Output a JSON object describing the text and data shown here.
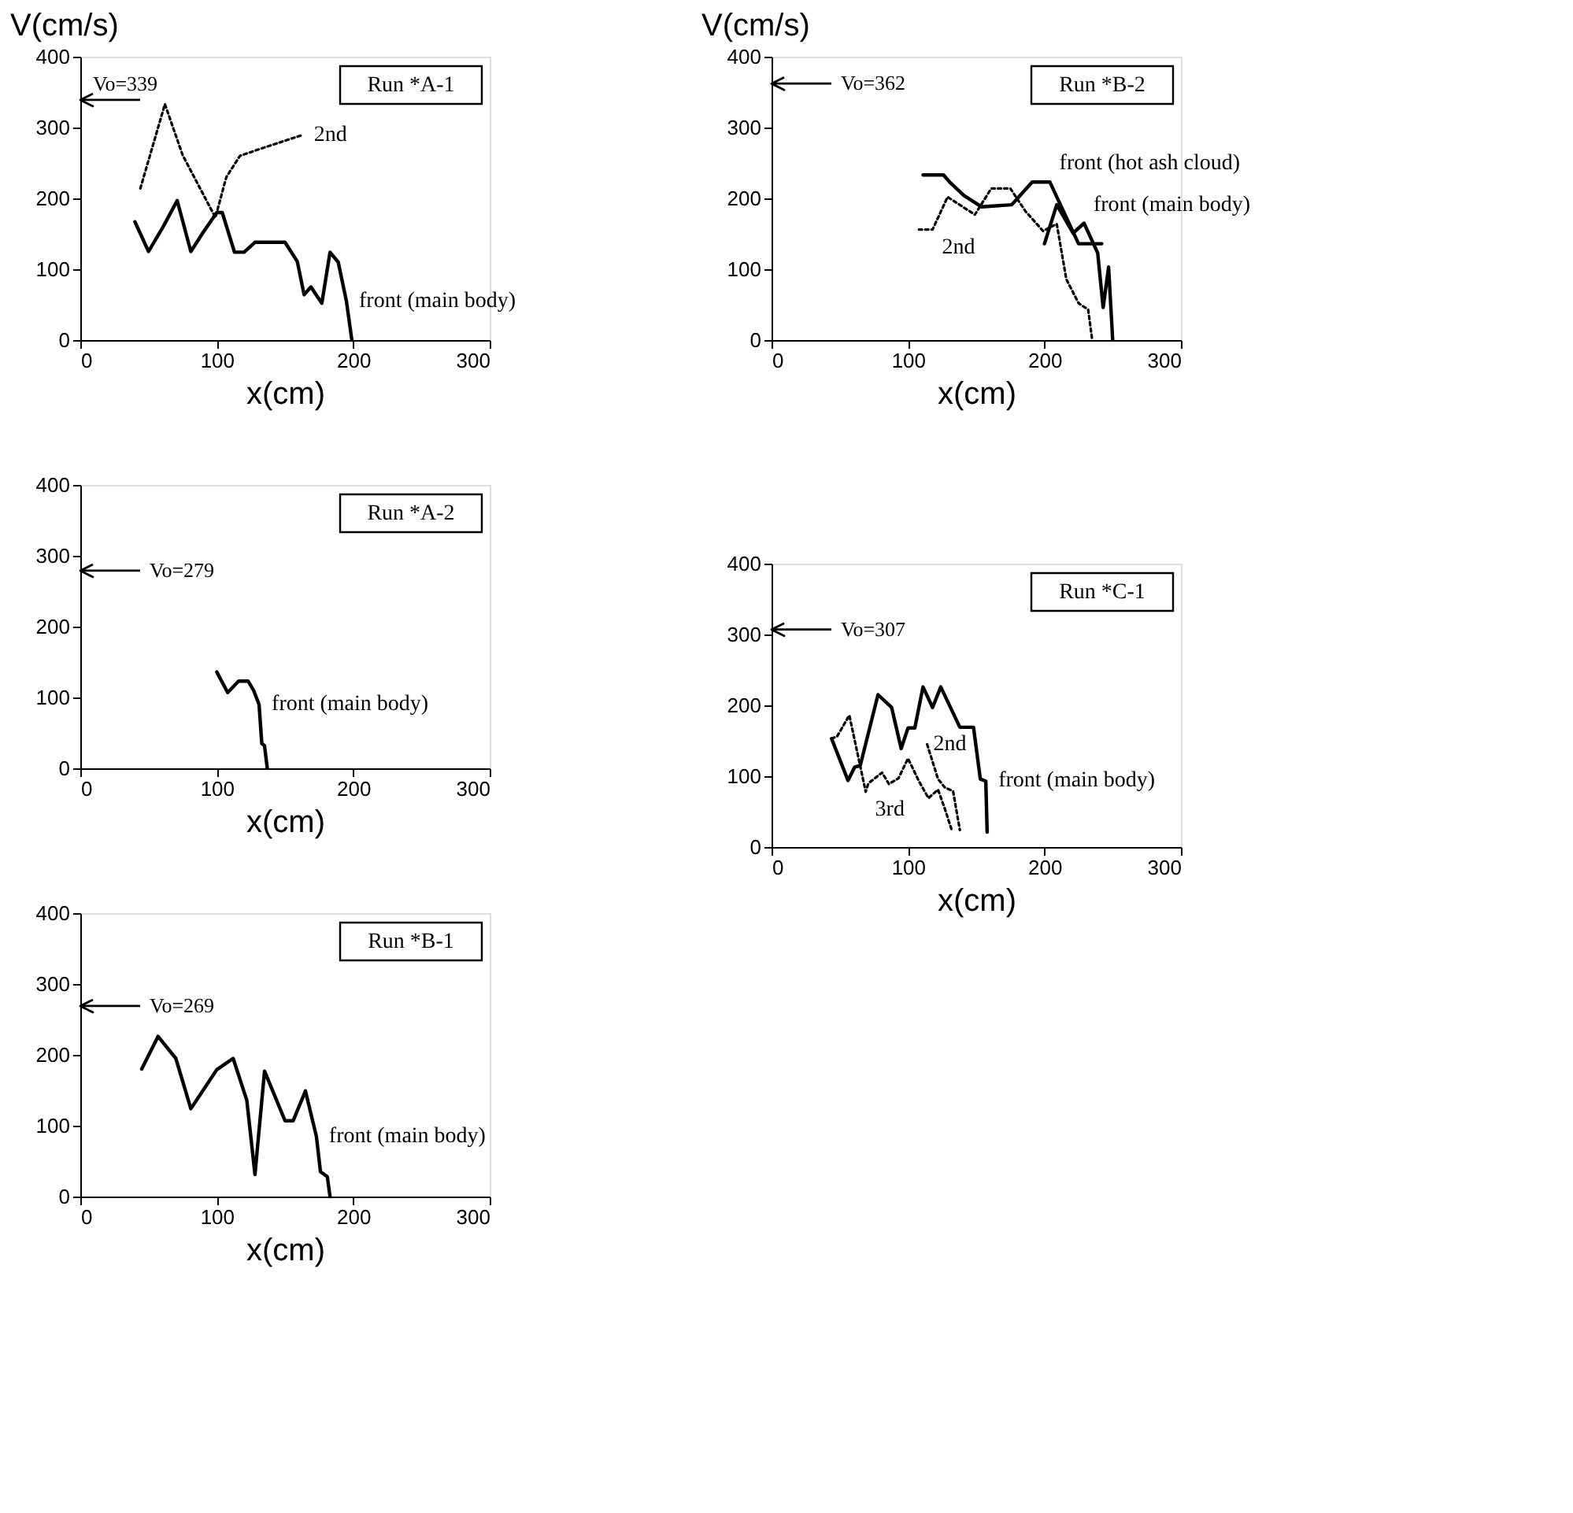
{
  "chart_data": [
    {
      "type": "line",
      "ylabel": "V(cm/s)",
      "xlabel": "x(cm)",
      "xlim": [
        0,
        300
      ],
      "xticks": [
        0,
        100,
        200,
        300
      ],
      "ylim": [
        0,
        400
      ],
      "yticks": [
        0,
        100,
        200,
        300,
        400
      ],
      "grid": false,
      "marker": "none",
      "annotations": [
        "Run *A-1"
      ],
      "ref_lines": [
        {
          "axis": "y",
          "value": 339,
          "label": "Vo=339",
          "color": "#000000"
        }
      ],
      "series": [
        {
          "name": "front (main body)",
          "color": "#000000",
          "line_style": "solid",
          "x": [
            40,
            50,
            61,
            71,
            81,
            90,
            100,
            104,
            113,
            120,
            128,
            150,
            159,
            164,
            169,
            177,
            183,
            189,
            195,
            199
          ],
          "values": [
            167,
            125,
            161,
            197,
            125,
            152,
            180,
            180,
            124,
            124,
            138,
            138,
            111,
            64,
            75,
            52,
            124,
            110,
            55,
            0
          ]
        },
        {
          "name": "2nd",
          "color": "#000000",
          "line_style": "dotted",
          "x": [
            44,
            62,
            75,
            99,
            107,
            117,
            132,
            162
          ],
          "values": [
            214,
            333,
            261,
            173,
            230,
            260,
            270,
            289
          ]
        }
      ]
    },
    {
      "type": "line",
      "xlabel": "x(cm)",
      "xlim": [
        0,
        300
      ],
      "xticks": [
        0,
        100,
        200,
        300
      ],
      "ylim": [
        0,
        400
      ],
      "yticks": [
        0,
        100,
        200,
        300,
        400
      ],
      "grid": false,
      "marker": "none",
      "annotations": [
        "Run *A-2"
      ],
      "ref_lines": [
        {
          "axis": "y",
          "value": 279,
          "label": "Vo=279",
          "color": "#000000"
        }
      ],
      "series": [
        {
          "name": "front (main body)",
          "color": "#000000",
          "line_style": "solid",
          "x": [
            100,
            108,
            116,
            123,
            127,
            131,
            133,
            135,
            137
          ],
          "values": [
            136,
            107,
            123,
            123,
            110,
            90,
            35,
            32,
            0
          ]
        }
      ]
    },
    {
      "type": "line",
      "xlabel": "x(cm)",
      "xlim": [
        0,
        300
      ],
      "xticks": [
        0,
        100,
        200,
        300
      ],
      "ylim": [
        0,
        400
      ],
      "yticks": [
        0,
        100,
        200,
        300,
        400
      ],
      "grid": false,
      "marker": "none",
      "annotations": [
        "Run *B-1"
      ],
      "ref_lines": [
        {
          "axis": "y",
          "value": 269,
          "label": "Vo=269",
          "color": "#000000"
        }
      ],
      "series": [
        {
          "name": "front (main body)",
          "color": "#000000",
          "line_style": "solid",
          "x": [
            45,
            57,
            70,
            81,
            100,
            112,
            122,
            128,
            135,
            150,
            156,
            165,
            173,
            176,
            181,
            183
          ],
          "values": [
            180,
            226,
            195,
            124,
            179,
            195,
            136,
            31,
            177,
            107,
            107,
            149,
            85,
            35,
            28,
            0
          ]
        }
      ]
    },
    {
      "type": "line",
      "ylabel": "V(cm/s)",
      "xlabel": "x(cm)",
      "xlim": [
        0,
        300
      ],
      "xticks": [
        0,
        100,
        200,
        300
      ],
      "ylim": [
        0,
        400
      ],
      "yticks": [
        0,
        100,
        200,
        300,
        400
      ],
      "grid": false,
      "marker": "none",
      "annotations": [
        "Run *B-2"
      ],
      "ref_lines": [
        {
          "axis": "y",
          "value": 362,
          "label": "Vo=362",
          "color": "#000000"
        }
      ],
      "series": [
        {
          "name": "front (hot ash cloud)",
          "color": "#000000",
          "line_style": "solid",
          "x": [
            111,
            126,
            131,
            141,
            154,
            176,
            191,
            204,
            210,
            225,
            242
          ],
          "values": [
            233,
            233,
            222,
            204,
            188,
            191,
            223,
            223,
            198,
            136,
            136
          ]
        },
        {
          "name": "front (main body)",
          "color": "#000000",
          "line_style": "solid",
          "x": [
            200,
            209,
            221,
            229,
            239,
            243,
            247,
            250
          ],
          "values": [
            136,
            191,
            151,
            165,
            123,
            46,
            103,
            0
          ]
        },
        {
          "name": "2nd",
          "color": "#000000",
          "line_style": "dotted",
          "x": [
            108,
            118,
            129,
            149,
            161,
            175,
            186,
            199,
            209,
            216,
            225,
            232,
            235
          ],
          "values": [
            156,
            156,
            202,
            177,
            214,
            214,
            182,
            154,
            164,
            86,
            52,
            43,
            0
          ]
        }
      ]
    },
    {
      "type": "line",
      "xlabel": "x(cm)",
      "xlim": [
        0,
        300
      ],
      "xticks": [
        0,
        100,
        200,
        300
      ],
      "ylim": [
        0,
        400
      ],
      "yticks": [
        0,
        100,
        200,
        300,
        400
      ],
      "grid": false,
      "marker": "none",
      "annotations": [
        "Run *C-1"
      ],
      "ref_lines": [
        {
          "axis": "y",
          "value": 307,
          "label": "Vo=307",
          "color": "#000000"
        }
      ],
      "series": [
        {
          "name": "front (main body)",
          "color": "#000000",
          "line_style": "solid",
          "x": [
            44,
            56,
            61,
            65,
            78,
            88,
            95,
            100,
            105,
            111,
            118,
            124,
            138,
            148,
            153,
            157,
            158
          ],
          "values": [
            153,
            94,
            113,
            115,
            215,
            197,
            139,
            168,
            168,
            226,
            197,
            226,
            169,
            169,
            96,
            93,
            21
          ]
        },
        {
          "name": "2nd",
          "color": "#000000",
          "line_style": "dotted",
          "x": [
            114,
            122,
            127,
            133,
            138
          ],
          "values": [
            145,
            96,
            84,
            79,
            24
          ]
        },
        {
          "name": "3rd",
          "color": "#000000",
          "line_style": "dotted",
          "x": [
            44,
            48,
            57,
            69,
            71,
            81,
            86,
            93,
            100,
            108,
            115,
            122,
            127,
            132
          ],
          "values": [
            153,
            156,
            186,
            78,
            90,
            105,
            89,
            97,
            125,
            93,
            69,
            81,
            54,
            24
          ]
        }
      ]
    }
  ]
}
